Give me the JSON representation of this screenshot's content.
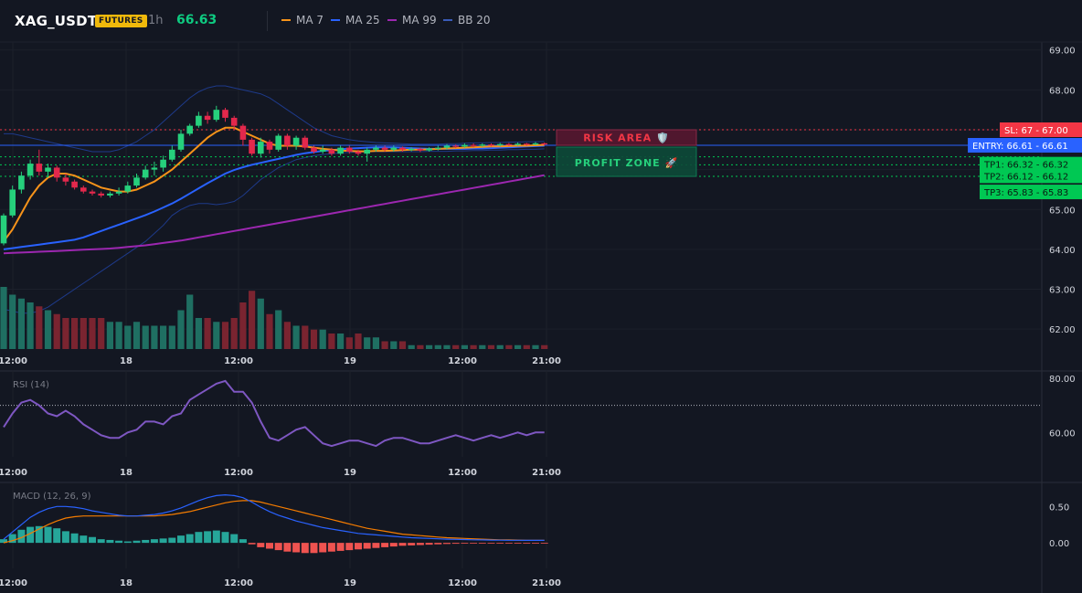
{
  "header": {
    "symbol": "XAG_USDT",
    "badge": "FUTURES",
    "timeframe": "1h",
    "price": "66.63",
    "legend": [
      {
        "label": "MA 7",
        "color": "#f7931a"
      },
      {
        "label": "MA 25",
        "color": "#2962ff"
      },
      {
        "label": "MA 99",
        "color": "#9c27b0"
      },
      {
        "label": "BB 20",
        "color": "#1e3a8a"
      }
    ]
  },
  "colors": {
    "up": "#26d07c",
    "down": "#e3284c",
    "vol_up": "#1f6f62",
    "vol_down": "#7a2430",
    "sl": "#f23645",
    "entry": "#2962ff",
    "tp": "#00c853",
    "rsi": "#7e57c2",
    "macd_line": "#2962ff",
    "signal_line": "#f57c00",
    "hist_pos": "#26a69a",
    "hist_neg": "#ef5350"
  },
  "zones": {
    "risk_label": "RISK AREA 🛡️",
    "profit_label": "PROFIT ZONE 🚀"
  },
  "price_labels": [
    {
      "label": "SL: 67",
      "value": "67.00",
      "level": 67.0,
      "color": "#f23645"
    },
    {
      "label": "ENTRY: 66.61",
      "value": "66.61",
      "level": 66.61,
      "color": "#2962ff"
    },
    {
      "label": "TP1: 66.32",
      "value": "66.32",
      "level": 66.32,
      "color": "#00c853"
    },
    {
      "label": "TP2: 66.12",
      "value": "66.12",
      "level": 66.12,
      "color": "#00c853"
    },
    {
      "label": "TP3: 65.83",
      "value": "65.83",
      "level": 65.83,
      "color": "#00c853"
    }
  ],
  "rsi_title": "RSI (14)",
  "macd_title": "MACD (12, 26, 9)",
  "x_ticks": [
    "12:00",
    "18",
    "12:00",
    "19",
    "12:00",
    "21:00"
  ],
  "chart_data": [
    {
      "type": "candlestick",
      "title": "XAG_USDT",
      "ylim": [
        61.5,
        69.2
      ],
      "y_ticks": [
        "69.00",
        "68.00",
        "67.00",
        "66.00",
        "65.00",
        "64.00",
        "63.00",
        "62.00"
      ],
      "candles": [
        [
          64.15,
          64.85,
          64.1,
          64.9
        ],
        [
          64.85,
          65.5,
          64.8,
          65.6
        ],
        [
          65.5,
          65.85,
          65.4,
          65.95
        ],
        [
          65.85,
          66.15,
          65.75,
          66.25
        ],
        [
          66.15,
          65.95,
          65.85,
          66.5
        ],
        [
          65.95,
          66.05,
          65.8,
          66.15
        ],
        [
          66.05,
          65.8,
          65.7,
          66.1
        ],
        [
          65.8,
          65.7,
          65.6,
          65.9
        ],
        [
          65.7,
          65.55,
          65.5,
          65.75
        ],
        [
          65.55,
          65.45,
          65.4,
          65.6
        ],
        [
          65.45,
          65.4,
          65.35,
          65.5
        ],
        [
          65.4,
          65.35,
          65.3,
          65.45
        ],
        [
          65.35,
          65.4,
          65.3,
          65.45
        ],
        [
          65.4,
          65.45,
          65.35,
          65.55
        ],
        [
          65.45,
          65.6,
          65.4,
          65.7
        ],
        [
          65.6,
          65.8,
          65.55,
          65.9
        ],
        [
          65.8,
          66.0,
          65.75,
          66.1
        ],
        [
          66.0,
          66.05,
          65.85,
          66.2
        ],
        [
          66.05,
          66.25,
          65.95,
          66.35
        ],
        [
          66.25,
          66.5,
          66.2,
          66.6
        ],
        [
          66.5,
          66.9,
          66.45,
          67.0
        ],
        [
          66.9,
          67.1,
          66.85,
          67.15
        ],
        [
          67.1,
          67.35,
          67.05,
          67.45
        ],
        [
          67.35,
          67.25,
          67.15,
          67.45
        ],
        [
          67.25,
          67.5,
          67.2,
          67.6
        ],
        [
          67.5,
          67.3,
          67.2,
          67.55
        ],
        [
          67.3,
          67.1,
          67.0,
          67.35
        ],
        [
          67.1,
          66.75,
          66.6,
          67.15
        ],
        [
          66.75,
          66.4,
          66.35,
          66.8
        ],
        [
          66.4,
          66.7,
          66.3,
          66.8
        ],
        [
          66.7,
          66.5,
          66.4,
          66.75
        ],
        [
          66.5,
          66.85,
          66.45,
          66.9
        ],
        [
          66.85,
          66.6,
          66.5,
          66.9
        ],
        [
          66.6,
          66.8,
          66.5,
          66.85
        ],
        [
          66.8,
          66.55,
          66.5,
          66.85
        ],
        [
          66.55,
          66.45,
          66.4,
          66.6
        ],
        [
          66.45,
          66.5,
          66.4,
          66.6
        ],
        [
          66.5,
          66.4,
          66.35,
          66.55
        ],
        [
          66.4,
          66.55,
          66.35,
          66.6
        ],
        [
          66.55,
          66.45,
          66.4,
          66.6
        ],
        [
          66.45,
          66.4,
          66.35,
          66.5
        ],
        [
          66.4,
          66.5,
          66.2,
          66.55
        ],
        [
          66.5,
          66.55,
          66.45,
          66.6
        ],
        [
          66.55,
          66.5,
          66.45,
          66.6
        ],
        [
          66.5,
          66.55,
          66.45,
          66.6
        ],
        [
          66.55,
          66.5,
          66.45,
          66.58
        ],
        [
          66.5,
          66.52,
          66.46,
          66.56
        ],
        [
          66.52,
          66.48,
          66.44,
          66.55
        ],
        [
          66.48,
          66.53,
          66.45,
          66.56
        ],
        [
          66.53,
          66.55,
          66.48,
          66.6
        ],
        [
          66.55,
          66.6,
          66.5,
          66.64
        ],
        [
          66.6,
          66.58,
          66.54,
          66.63
        ],
        [
          66.58,
          66.62,
          66.55,
          66.66
        ],
        [
          66.62,
          66.6,
          66.56,
          66.66
        ],
        [
          66.6,
          66.63,
          66.57,
          66.66
        ],
        [
          66.63,
          66.61,
          66.58,
          66.66
        ],
        [
          66.61,
          66.64,
          66.58,
          66.67
        ],
        [
          66.64,
          66.62,
          66.59,
          66.67
        ],
        [
          66.62,
          66.65,
          66.6,
          66.68
        ],
        [
          66.65,
          66.63,
          66.6,
          66.67
        ],
        [
          66.63,
          66.66,
          66.61,
          66.69
        ],
        [
          66.66,
          66.63,
          66.61,
          66.68
        ]
      ],
      "ma7": [
        64.2,
        64.5,
        64.9,
        65.3,
        65.6,
        65.8,
        65.9,
        65.9,
        65.85,
        65.75,
        65.65,
        65.55,
        65.5,
        65.45,
        65.45,
        65.5,
        65.6,
        65.7,
        65.85,
        66.0,
        66.2,
        66.4,
        66.6,
        66.8,
        66.95,
        67.05,
        67.05,
        66.95,
        66.85,
        66.75,
        66.65,
        66.6,
        66.6,
        66.6,
        66.58,
        66.55,
        66.52,
        66.5,
        66.48,
        66.47,
        66.46,
        66.46,
        66.47,
        66.47,
        66.48,
        66.49,
        66.5,
        66.5,
        66.51,
        66.52,
        66.53,
        66.54,
        66.55,
        66.56,
        66.57,
        66.58,
        66.58,
        66.59,
        66.6,
        66.6,
        66.61,
        66.62
      ],
      "ma25": [
        64.0,
        64.03,
        64.06,
        64.09,
        64.12,
        64.15,
        64.18,
        64.21,
        64.24,
        64.3,
        64.38,
        64.46,
        64.54,
        64.62,
        64.7,
        64.78,
        64.86,
        64.95,
        65.05,
        65.15,
        65.27,
        65.4,
        65.53,
        65.66,
        65.78,
        65.9,
        65.99,
        66.06,
        66.12,
        66.17,
        66.22,
        66.27,
        66.32,
        66.37,
        66.41,
        66.44,
        66.47,
        66.49,
        66.51,
        66.53,
        66.54,
        66.55,
        66.56,
        66.56,
        66.56,
        66.55,
        66.54,
        66.53,
        66.52,
        66.52,
        66.52,
        66.52,
        66.52,
        66.53,
        66.53,
        66.54,
        66.55,
        66.56,
        66.57,
        66.58,
        66.59,
        66.6
      ],
      "ma99": [
        63.9,
        63.91,
        63.92,
        63.93,
        63.94,
        63.95,
        63.96,
        63.97,
        63.98,
        63.99,
        64.0,
        64.01,
        64.02,
        64.04,
        64.06,
        64.08,
        64.1,
        64.13,
        64.16,
        64.19,
        64.22,
        64.26,
        64.3,
        64.34,
        64.38,
        64.42,
        64.46,
        64.5,
        64.54,
        64.58,
        64.62,
        64.66,
        64.7,
        64.74,
        64.78,
        64.82,
        64.86,
        64.9,
        64.94,
        64.98,
        65.02,
        65.06,
        65.1,
        65.14,
        65.18,
        65.22,
        65.26,
        65.3,
        65.34,
        65.38,
        65.42,
        65.46,
        65.5,
        65.54,
        65.58,
        65.62,
        65.66,
        65.7,
        65.74,
        65.78,
        65.82,
        65.86
      ],
      "bb_upper": [
        66.9,
        66.9,
        66.85,
        66.8,
        66.75,
        66.7,
        66.65,
        66.6,
        66.55,
        66.5,
        66.45,
        66.45,
        66.45,
        66.5,
        66.6,
        66.7,
        66.85,
        67.0,
        67.2,
        67.4,
        67.6,
        67.8,
        67.95,
        68.05,
        68.1,
        68.1,
        68.05,
        68.0,
        67.95,
        67.9,
        67.8,
        67.65,
        67.5,
        67.35,
        67.2,
        67.05,
        66.95,
        66.85,
        66.8,
        66.75,
        66.72,
        66.7,
        66.68,
        66.67,
        66.66,
        66.65,
        66.64,
        66.64,
        66.64,
        66.64,
        66.65,
        66.65,
        66.66,
        66.67,
        66.67,
        66.68,
        66.68,
        66.69,
        66.69,
        66.7,
        66.7,
        66.71
      ],
      "bb_lower": [
        62.5,
        62.45,
        62.4,
        62.4,
        62.45,
        62.55,
        62.7,
        62.85,
        63.0,
        63.15,
        63.3,
        63.45,
        63.6,
        63.75,
        63.9,
        64.05,
        64.2,
        64.4,
        64.6,
        64.85,
        65.0,
        65.1,
        65.15,
        65.15,
        65.12,
        65.15,
        65.2,
        65.35,
        65.55,
        65.75,
        65.9,
        66.05,
        66.15,
        66.25,
        66.3,
        66.35,
        66.38,
        66.4,
        66.42,
        66.43,
        66.44,
        66.45,
        66.45,
        66.45,
        66.45,
        66.45,
        66.45,
        66.45,
        66.46,
        66.46,
        66.46,
        66.47,
        66.47,
        66.48,
        66.48,
        66.49,
        66.49,
        66.5,
        66.5,
        66.51,
        66.51,
        66.52
      ],
      "volume": [
        16,
        14,
        13,
        12,
        11,
        10,
        9,
        8,
        8,
        8,
        8,
        8,
        7,
        7,
        6,
        7,
        6,
        6,
        6,
        6,
        10,
        14,
        8,
        8,
        7,
        7,
        8,
        12,
        15,
        13,
        9,
        10,
        7,
        6,
        6,
        5,
        5,
        4,
        4,
        3,
        4,
        3,
        3,
        2,
        2,
        2,
        1,
        1,
        1,
        1,
        1,
        1,
        1,
        1,
        1,
        1,
        1,
        1,
        1,
        1,
        1,
        1
      ]
    },
    {
      "type": "line",
      "title": "RSI (14)",
      "ylim": [
        51,
        82
      ],
      "y_ticks": [
        "80.00",
        "60.00"
      ],
      "reference_level": 70,
      "values": [
        62,
        67,
        71,
        72,
        70,
        67,
        66,
        68,
        66,
        63,
        61,
        59,
        58,
        58,
        60,
        61,
        64,
        64,
        63,
        66,
        67,
        72,
        74,
        76,
        78,
        79,
        75,
        75,
        71,
        64,
        58,
        57,
        59,
        61,
        62,
        59,
        56,
        55,
        56,
        57,
        57,
        56,
        55,
        57,
        58,
        58,
        57,
        56,
        56,
        57,
        58,
        59,
        58,
        57,
        58,
        59,
        58,
        59,
        60,
        59,
        60,
        60
      ]
    },
    {
      "type": "bar+line",
      "title": "MACD (12, 26, 9)",
      "ylim": [
        -0.35,
        0.78
      ],
      "y_ticks": [
        "0.50",
        "0.00"
      ],
      "histogram": [
        0.05,
        0.12,
        0.18,
        0.22,
        0.23,
        0.22,
        0.2,
        0.16,
        0.13,
        0.1,
        0.08,
        0.05,
        0.04,
        0.03,
        0.02,
        0.03,
        0.04,
        0.05,
        0.06,
        0.07,
        0.1,
        0.12,
        0.15,
        0.16,
        0.17,
        0.15,
        0.12,
        0.05,
        -0.02,
        -0.06,
        -0.08,
        -0.1,
        -0.12,
        -0.13,
        -0.14,
        -0.14,
        -0.13,
        -0.12,
        -0.11,
        -0.1,
        -0.09,
        -0.08,
        -0.07,
        -0.06,
        -0.05,
        -0.04,
        -0.035,
        -0.03,
        -0.025,
        -0.02,
        -0.015,
        -0.012,
        -0.01,
        -0.008,
        -0.006,
        -0.005,
        -0.004,
        -0.003,
        -0.002,
        -0.002,
        -0.001,
        -0.001
      ],
      "macd": [
        0.05,
        0.15,
        0.25,
        0.35,
        0.42,
        0.47,
        0.5,
        0.5,
        0.49,
        0.47,
        0.44,
        0.42,
        0.4,
        0.38,
        0.37,
        0.37,
        0.38,
        0.39,
        0.41,
        0.44,
        0.48,
        0.53,
        0.58,
        0.62,
        0.65,
        0.66,
        0.65,
        0.62,
        0.56,
        0.49,
        0.43,
        0.38,
        0.34,
        0.3,
        0.27,
        0.24,
        0.21,
        0.19,
        0.17,
        0.15,
        0.13,
        0.12,
        0.11,
        0.1,
        0.09,
        0.08,
        0.07,
        0.065,
        0.06,
        0.055,
        0.05,
        0.048,
        0.045,
        0.042,
        0.04,
        0.038,
        0.037,
        0.036,
        0.035,
        0.034,
        0.034,
        0.034
      ],
      "signal": [
        0.0,
        0.03,
        0.07,
        0.13,
        0.19,
        0.25,
        0.3,
        0.34,
        0.36,
        0.37,
        0.37,
        0.37,
        0.37,
        0.37,
        0.37,
        0.37,
        0.37,
        0.37,
        0.38,
        0.39,
        0.41,
        0.43,
        0.46,
        0.49,
        0.52,
        0.55,
        0.57,
        0.58,
        0.58,
        0.56,
        0.53,
        0.5,
        0.47,
        0.44,
        0.41,
        0.38,
        0.35,
        0.32,
        0.29,
        0.26,
        0.23,
        0.2,
        0.18,
        0.16,
        0.14,
        0.12,
        0.11,
        0.1,
        0.09,
        0.08,
        0.07,
        0.065,
        0.06,
        0.055,
        0.05,
        0.045,
        0.042,
        0.04,
        0.038,
        0.036,
        0.035,
        0.035
      ]
    }
  ]
}
